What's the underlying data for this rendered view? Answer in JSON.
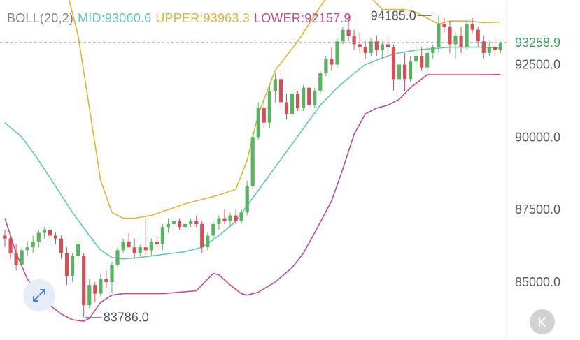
{
  "legend": {
    "label": "BOLL(20,2)",
    "mid": "MID:93060.6",
    "upper": "UPPER:93963.3",
    "lower": "LOWER:92157.9"
  },
  "icons": {
    "expand": "expand-arrows-icon",
    "scroll_latest": "skip-to-latest-icon"
  },
  "colors": {
    "up": "#5cb262",
    "down": "#d1515a",
    "mid": "#5fc9b6",
    "upper": "#e1b536",
    "lower": "#c7479a",
    "axis_text": "#525a66",
    "last_price": "#3f9e64",
    "legend_label": "#80838a"
  },
  "chart_data": {
    "type": "candlestick",
    "indicator": "BOLL(20,2)",
    "ylim": [
      83000,
      97400
    ],
    "y_ticks": [
      92500,
      90000,
      87500,
      85000
    ],
    "y_tick_labels": [
      "92500.0",
      "90000.0",
      "87500.0",
      "85000.0"
    ],
    "last_price": 93258.9,
    "last_price_label": "93258.9",
    "annotations": [
      {
        "text": "94185.0",
        "value": 94185,
        "index": 76
      },
      {
        "text": "83786.0",
        "value": 83786,
        "index": 14
      }
    ],
    "candles": [
      [
        86600,
        86800,
        86200,
        86500
      ],
      [
        86500,
        86700,
        85800,
        86000
      ],
      [
        86000,
        86300,
        85400,
        85600
      ],
      [
        85600,
        86200,
        85500,
        86100
      ],
      [
        86100,
        86400,
        85900,
        86200
      ],
      [
        86200,
        86600,
        86000,
        86400
      ],
      [
        86400,
        86800,
        86200,
        86700
      ],
      [
        86700,
        86900,
        86500,
        86800
      ],
      [
        86800,
        86900,
        86500,
        86600
      ],
      [
        86600,
        86700,
        86300,
        86500
      ],
      [
        86500,
        86600,
        85800,
        86000
      ],
      [
        86000,
        86200,
        84900,
        85200
      ],
      [
        85200,
        86000,
        85000,
        85900
      ],
      [
        85900,
        86500,
        85600,
        86300
      ],
      [
        85900,
        86000,
        83786,
        84200
      ],
      [
        84200,
        85100,
        84100,
        84900
      ],
      [
        84900,
        85000,
        84300,
        84600
      ],
      [
        84600,
        85300,
        84500,
        85100
      ],
      [
        85100,
        85400,
        84800,
        85000
      ],
      [
        85000,
        85700,
        84600,
        85600
      ],
      [
        85600,
        86200,
        85500,
        86100
      ],
      [
        86100,
        86500,
        86000,
        86400
      ],
      [
        86400,
        86700,
        86200,
        86200
      ],
      [
        86200,
        86500,
        85800,
        86000
      ],
      [
        86000,
        86300,
        85900,
        86200
      ],
      [
        86200,
        87200,
        85900,
        86100
      ],
      [
        86100,
        86500,
        85900,
        86400
      ],
      [
        86400,
        86600,
        86200,
        86300
      ],
      [
        86300,
        87000,
        86100,
        86900
      ],
      [
        86900,
        87200,
        86700,
        87000
      ],
      [
        87000,
        87200,
        86800,
        87100
      ],
      [
        87100,
        87200,
        86800,
        86900
      ],
      [
        86900,
        87100,
        86700,
        87000
      ],
      [
        87000,
        87200,
        86900,
        87100
      ],
      [
        87100,
        87300,
        86900,
        87000
      ],
      [
        87000,
        87100,
        86000,
        86200
      ],
      [
        86200,
        86700,
        86100,
        86600
      ],
      [
        86600,
        87100,
        86500,
        87000
      ],
      [
        87000,
        87300,
        86800,
        87200
      ],
      [
        87200,
        87500,
        87000,
        87100
      ],
      [
        87100,
        87400,
        86900,
        87300
      ],
      [
        87300,
        87500,
        87000,
        87100
      ],
      [
        87100,
        87500,
        87000,
        87400
      ],
      [
        87400,
        88500,
        87300,
        88300
      ],
      [
        88300,
        90200,
        88200,
        90000
      ],
      [
        90000,
        91200,
        89900,
        91000
      ],
      [
        91000,
        91300,
        90300,
        90500
      ],
      [
        90500,
        91800,
        90300,
        91600
      ],
      [
        91600,
        92200,
        91200,
        92000
      ],
      [
        92000,
        92300,
        91000,
        91200
      ],
      [
        91200,
        91500,
        90600,
        90800
      ],
      [
        90800,
        91700,
        90700,
        91500
      ],
      [
        91500,
        91600,
        90900,
        91000
      ],
      [
        91000,
        91800,
        90900,
        91700
      ],
      [
        91700,
        91700,
        91000,
        91100
      ],
      [
        91100,
        91700,
        91000,
        91600
      ],
      [
        91600,
        92300,
        91500,
        92200
      ],
      [
        92200,
        92800,
        92100,
        92700
      ],
      [
        92700,
        93100,
        92300,
        92500
      ],
      [
        92500,
        93400,
        92400,
        93300
      ],
      [
        93300,
        93800,
        93200,
        93700
      ],
      [
        93700,
        94200,
        93300,
        93500
      ],
      [
        93500,
        93700,
        93000,
        93200
      ],
      [
        93200,
        93600,
        92900,
        93100
      ],
      [
        93100,
        93300,
        92700,
        92900
      ],
      [
        92900,
        93400,
        92800,
        93300
      ],
      [
        93300,
        93500,
        92800,
        93000
      ],
      [
        93000,
        93300,
        92700,
        93200
      ],
      [
        93200,
        93500,
        92800,
        93100
      ],
      [
        93100,
        93200,
        91600,
        92000
      ],
      [
        92000,
        92700,
        91800,
        92500
      ],
      [
        92500,
        92900,
        91600,
        92000
      ],
      [
        92000,
        92800,
        91900,
        92600
      ],
      [
        92600,
        93300,
        92300,
        92800
      ],
      [
        92800,
        93100,
        92300,
        92400
      ],
      [
        92400,
        93100,
        92200,
        92900
      ],
      [
        92900,
        93200,
        92700,
        93100
      ],
      [
        93100,
        94185,
        92900,
        93900
      ],
      [
        93900,
        94100,
        93600,
        93800
      ],
      [
        93800,
        94000,
        92900,
        93200
      ],
      [
        93200,
        93600,
        92700,
        93500
      ],
      [
        93500,
        93800,
        92900,
        93100
      ],
      [
        93100,
        94000,
        93000,
        93900
      ],
      [
        93900,
        94100,
        93600,
        93700
      ],
      [
        93700,
        93800,
        93100,
        93300
      ],
      [
        93300,
        93500,
        92700,
        92900
      ],
      [
        92900,
        93300,
        92800,
        93100
      ],
      [
        93100,
        93400,
        92800,
        93000
      ],
      [
        93000,
        93300,
        92900,
        93259
      ]
    ],
    "upper": [
      [
        0,
        96800
      ],
      [
        4,
        97200
      ],
      [
        7,
        96900
      ],
      [
        10,
        95800
      ],
      [
        13,
        93500
      ],
      [
        15,
        91000
      ],
      [
        17,
        88500
      ],
      [
        19,
        87400
      ],
      [
        21,
        87200
      ],
      [
        23,
        87200
      ],
      [
        26,
        87300
      ],
      [
        29,
        87500
      ],
      [
        32,
        87700
      ],
      [
        35,
        87850
      ],
      [
        38,
        88000
      ],
      [
        41,
        88200
      ],
      [
        43,
        89200
      ],
      [
        45,
        90800
      ],
      [
        48,
        92300
      ],
      [
        52,
        93300
      ],
      [
        56,
        94500
      ],
      [
        59,
        95300
      ],
      [
        61,
        95700
      ],
      [
        63,
        95500
      ],
      [
        65,
        94800
      ],
      [
        67,
        94400
      ],
      [
        69,
        94400
      ],
      [
        71,
        94400
      ],
      [
        73,
        94300
      ],
      [
        75,
        94100
      ],
      [
        77,
        93900
      ],
      [
        79,
        94000
      ],
      [
        82,
        94000
      ],
      [
        85,
        93950
      ],
      [
        88,
        93963
      ]
    ],
    "mid": [
      [
        0,
        90500
      ],
      [
        3,
        90000
      ],
      [
        6,
        89200
      ],
      [
        9,
        88300
      ],
      [
        12,
        87400
      ],
      [
        15,
        86600
      ],
      [
        17,
        86100
      ],
      [
        19,
        85850
      ],
      [
        21,
        85800
      ],
      [
        24,
        85850
      ],
      [
        28,
        85950
      ],
      [
        32,
        86050
      ],
      [
        35,
        86200
      ],
      [
        38,
        86600
      ],
      [
        41,
        87100
      ],
      [
        44,
        87900
      ],
      [
        47,
        88700
      ],
      [
        50,
        89500
      ],
      [
        53,
        90300
      ],
      [
        56,
        91100
      ],
      [
        59,
        91700
      ],
      [
        62,
        92200
      ],
      [
        64,
        92500
      ],
      [
        66,
        92650
      ],
      [
        68,
        92800
      ],
      [
        70,
        92900
      ],
      [
        73,
        93000
      ],
      [
        76,
        93050
      ],
      [
        79,
        93100
      ],
      [
        82,
        93100
      ],
      [
        85,
        93100
      ],
      [
        88,
        93061
      ]
    ],
    "lower": [
      [
        0,
        87200
      ],
      [
        2,
        86000
      ],
      [
        4,
        85100
      ],
      [
        6,
        84600
      ],
      [
        8,
        84200
      ],
      [
        10,
        83900
      ],
      [
        12,
        83700
      ],
      [
        14,
        83650
      ],
      [
        15,
        83750
      ],
      [
        17,
        84300
      ],
      [
        19,
        84550
      ],
      [
        21,
        84600
      ],
      [
        24,
        84600
      ],
      [
        28,
        84600
      ],
      [
        31,
        84650
      ],
      [
        34,
        84700
      ],
      [
        36,
        85100
      ],
      [
        37,
        85300
      ],
      [
        38,
        85250
      ],
      [
        40,
        84900
      ],
      [
        42,
        84600
      ],
      [
        43,
        84550
      ],
      [
        45,
        84650
      ],
      [
        48,
        85000
      ],
      [
        51,
        85500
      ],
      [
        53,
        86000
      ],
      [
        55,
        86700
      ],
      [
        58,
        87800
      ],
      [
        60,
        88900
      ],
      [
        62,
        90100
      ],
      [
        64,
        90800
      ],
      [
        66,
        91000
      ],
      [
        68,
        91100
      ],
      [
        70,
        91300
      ],
      [
        72,
        91700
      ],
      [
        74,
        92000
      ],
      [
        75,
        92150
      ],
      [
        77,
        92150
      ],
      [
        80,
        92150
      ],
      [
        83,
        92150
      ],
      [
        85,
        92150
      ],
      [
        88,
        92158
      ]
    ]
  }
}
